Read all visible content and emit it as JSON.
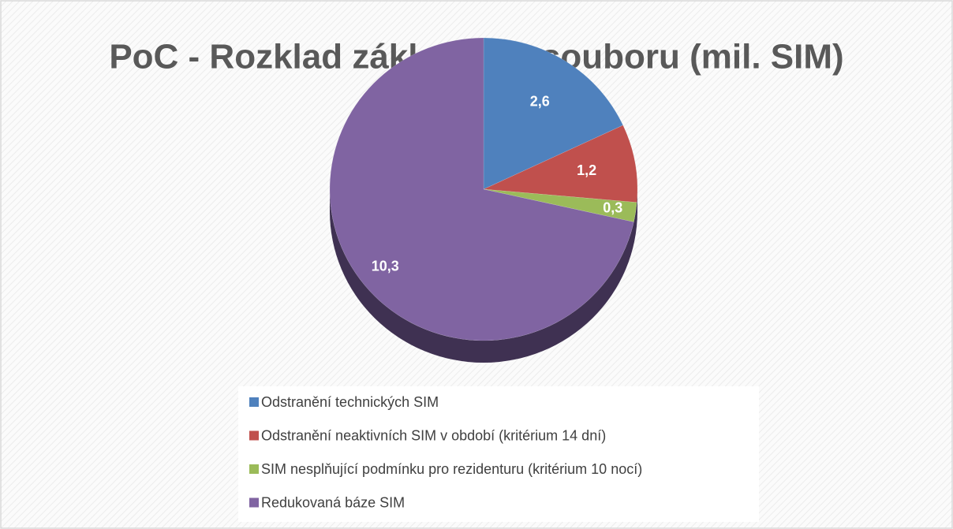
{
  "chart_data": {
    "type": "pie",
    "title": "PoC - Rozklad základního souboru (mil. SIM)",
    "categories": [
      "Odstranění technických SIM",
      "Odstranění neaktivních SIM v období (kritérium 14 dní)",
      "SIM nesplňující podmínku pro rezidenturu (kritérium 10 nocí)",
      "Redukovaná báze SIM"
    ],
    "values": [
      2.6,
      1.2,
      0.3,
      10.3
    ],
    "value_labels": [
      "2,6",
      "1,2",
      "0,3",
      "10,3"
    ],
    "colors": [
      "#4f81bd",
      "#c0504d",
      "#9bbb59",
      "#8064a2"
    ],
    "legend": "bottom"
  }
}
